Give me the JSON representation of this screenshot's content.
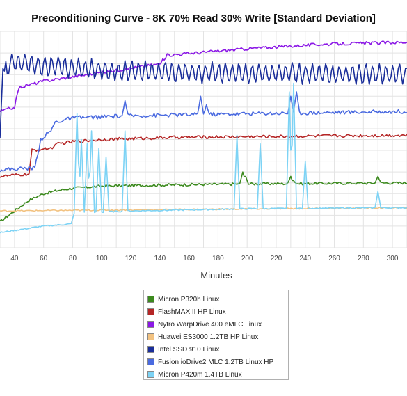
{
  "chart_data": {
    "type": "line",
    "title": "Preconditioning Curve - 8K 70% Read 30% Write [Standard Deviation]",
    "xlabel": "Minutes",
    "ylabel": "",
    "xlim": [
      30,
      310
    ],
    "ylim": [
      0,
      100
    ],
    "xticks": [
      40,
      60,
      80,
      100,
      120,
      140,
      160,
      180,
      200,
      220,
      240,
      260,
      280,
      300
    ],
    "grid": true,
    "legend_position": "bottom-center",
    "series": [
      {
        "name": "Micron P320h Linux",
        "color": "#3c8a1e",
        "base": [
          [
            30,
            12
          ],
          [
            40,
            17
          ],
          [
            50,
            22
          ],
          [
            60,
            25
          ],
          [
            70,
            26.5
          ],
          [
            80,
            27.5
          ],
          [
            100,
            28.5
          ],
          [
            140,
            29
          ],
          [
            200,
            29.5
          ],
          [
            310,
            30
          ]
        ],
        "noise": 0.6,
        "period": 0,
        "amp": 0,
        "spikes": [
          [
            197,
            35
          ],
          [
            199,
            33
          ],
          [
            230,
            33
          ],
          [
            232,
            31
          ],
          [
            290,
            33
          ]
        ]
      },
      {
        "name": "FlashMAX II HP Linux",
        "color": "#b52626",
        "base": [
          [
            30,
            33
          ],
          [
            50,
            34
          ],
          [
            52,
            45
          ],
          [
            65,
            46
          ],
          [
            70,
            48
          ],
          [
            80,
            49
          ],
          [
            100,
            50
          ],
          [
            150,
            51
          ],
          [
            310,
            52
          ]
        ],
        "noise": 0.7,
        "period": 0,
        "amp": 0,
        "spikes": []
      },
      {
        "name": "Nytro WarpDrive 400 eMLC Linux",
        "color": "#8b17e6",
        "base": [
          [
            30,
            63
          ],
          [
            40,
            65
          ],
          [
            43,
            74
          ],
          [
            60,
            77
          ],
          [
            100,
            81
          ],
          [
            140,
            85
          ],
          [
            145,
            89
          ],
          [
            200,
            92
          ],
          [
            250,
            94
          ],
          [
            310,
            95
          ]
        ],
        "noise": 0.7,
        "period": 0,
        "amp": 0,
        "spikes": []
      },
      {
        "name": "Huawei ES3000 1.2TB HP Linux",
        "color": "#f2c281",
        "base": [
          [
            30,
            17
          ],
          [
            310,
            18.5
          ]
        ],
        "noise": 0.3,
        "period": 0,
        "amp": 0,
        "spikes": []
      },
      {
        "name": "Intel SSD 910 Linux",
        "color": "#1a2e9a",
        "base": [
          [
            30,
            50
          ],
          [
            32,
            82
          ],
          [
            40,
            86
          ],
          [
            60,
            84
          ],
          [
            100,
            82
          ],
          [
            150,
            81
          ],
          [
            310,
            80
          ]
        ],
        "noise": 1.0,
        "period": 4.6,
        "amp": 4.2,
        "spikes": []
      },
      {
        "name": "Fusion ioDrive2 MLC 1.2TB Linux HP",
        "color": "#4a6ae0",
        "base": [
          [
            30,
            36
          ],
          [
            54,
            37
          ],
          [
            58,
            50
          ],
          [
            65,
            54
          ],
          [
            68,
            58
          ],
          [
            80,
            60
          ],
          [
            120,
            61
          ],
          [
            200,
            62
          ],
          [
            310,
            63
          ]
        ],
        "noise": 0.9,
        "period": 0,
        "amp": 0,
        "spikes": [
          [
            116,
            68
          ],
          [
            168,
            70
          ],
          [
            172,
            66
          ],
          [
            230,
            70
          ],
          [
            234,
            72
          ]
        ]
      },
      {
        "name": "Micron P420m 1.4TB Linux",
        "color": "#7dd3f5",
        "base": [
          [
            30,
            7
          ],
          [
            50,
            9
          ],
          [
            60,
            10
          ],
          [
            79,
            11
          ],
          [
            81,
            16
          ],
          [
            120,
            17
          ],
          [
            200,
            18
          ],
          [
            310,
            18.5
          ]
        ],
        "noise": 0.3,
        "period": 0,
        "amp": 0,
        "spikes": [
          [
            83,
            62
          ],
          [
            86,
            50
          ],
          [
            90,
            48
          ],
          [
            93,
            54
          ],
          [
            98,
            46
          ],
          [
            103,
            42
          ],
          [
            116,
            54
          ],
          [
            193,
            52
          ],
          [
            209,
            48
          ],
          [
            229,
            72
          ],
          [
            232,
            76
          ],
          [
            240,
            40
          ],
          [
            290,
            26
          ]
        ]
      }
    ]
  }
}
